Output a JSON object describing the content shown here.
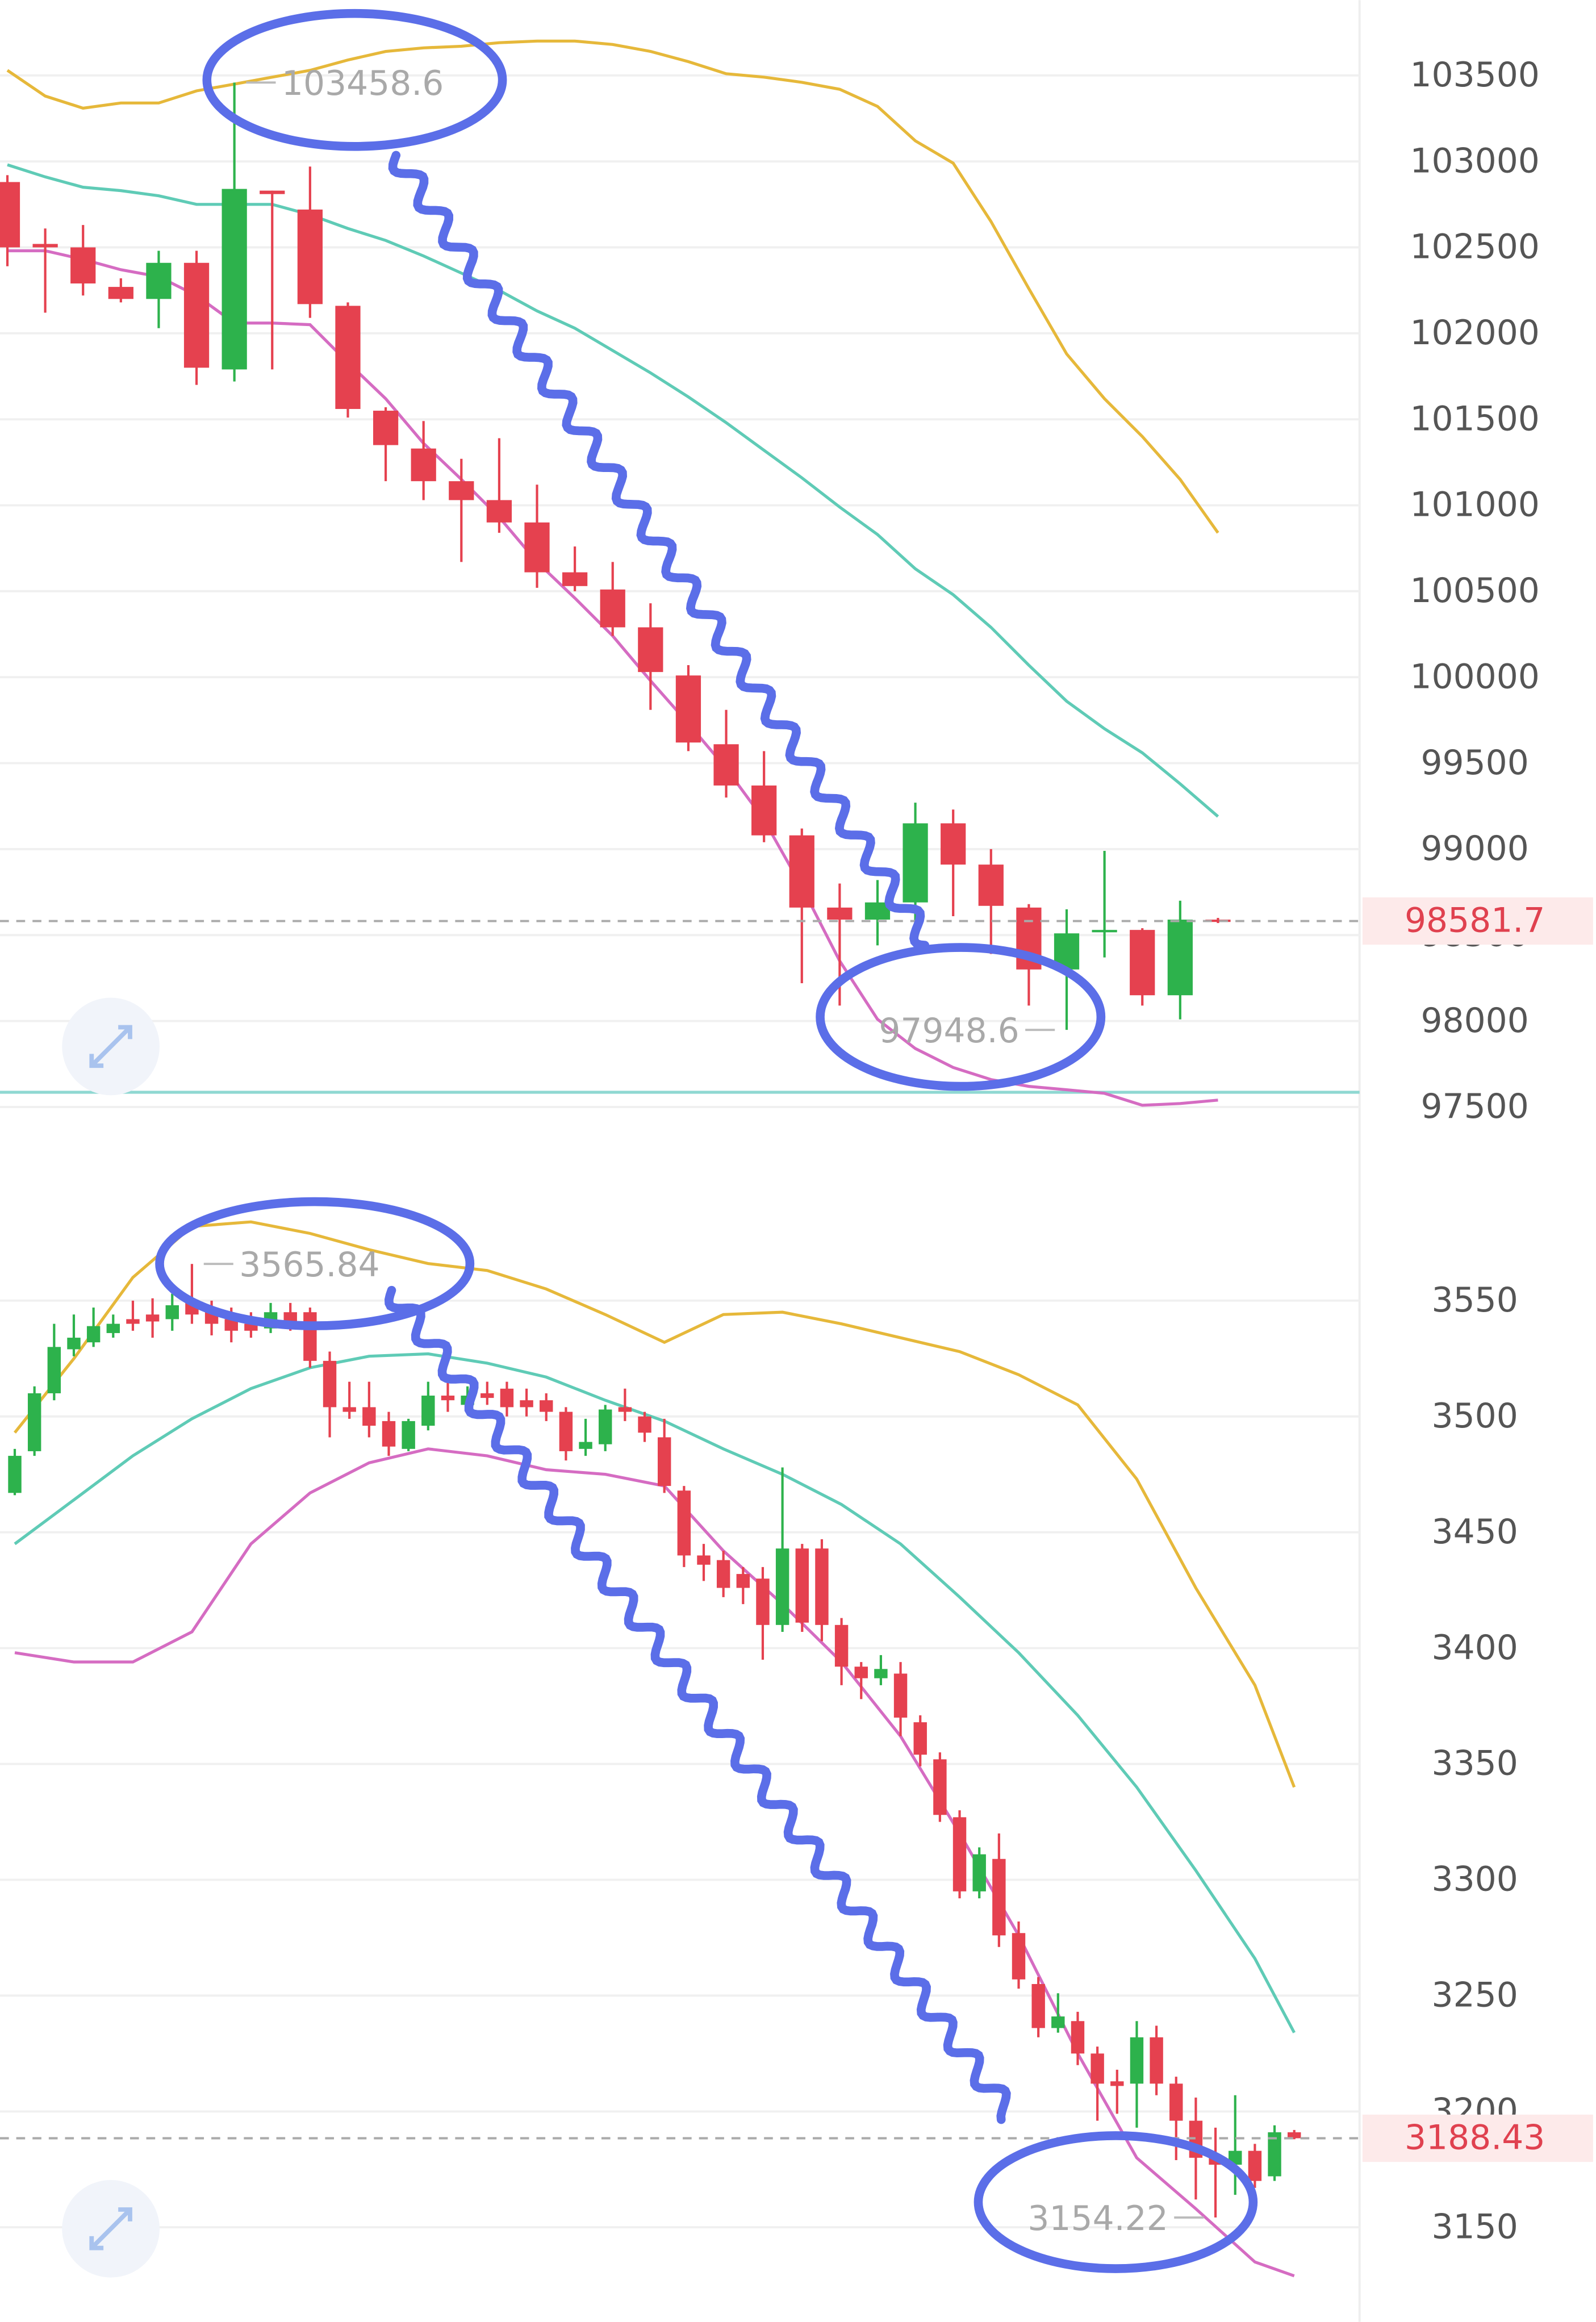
{
  "chart_data": [
    {
      "type": "candlestick",
      "up_color": "#2db24c",
      "down_color": "#e5414f",
      "open": [
        102880,
        102520,
        102500,
        102270,
        102200,
        102410,
        101790,
        102830,
        102720,
        102160,
        101550,
        101330,
        101140,
        101030,
        100900,
        100610,
        100510,
        100290,
        100010,
        99610,
        99370,
        99080,
        98660,
        98590,
        98690,
        99150,
        98910,
        98660,
        98300,
        98520,
        98530,
        98150,
        98590
      ],
      "high": [
        102920,
        102610,
        102630,
        102320,
        102480,
        102480,
        103458.6,
        102830,
        102970,
        102180,
        101570,
        101490,
        101270,
        101390,
        101120,
        100760,
        100670,
        100430,
        100070,
        99810,
        99570,
        99120,
        98800,
        98820,
        99270,
        99230,
        99000,
        98680,
        98650,
        98990,
        98540,
        98700,
        98600
      ],
      "low": [
        102390,
        102120,
        102220,
        102180,
        102030,
        101700,
        101720,
        101790,
        102090,
        101510,
        101140,
        101030,
        100670,
        100840,
        100520,
        100500,
        100240,
        99810,
        99570,
        99300,
        99040,
        98220,
        98090,
        98440,
        98450,
        98610,
        98390,
        98090,
        97948.6,
        98370,
        98090,
        98010,
        98570
      ],
      "close": [
        102500,
        102500,
        102290,
        102200,
        102410,
        101800,
        102840,
        102810,
        102170,
        101560,
        101350,
        101140,
        101030,
        100900,
        100610,
        100530,
        100290,
        100030,
        99620,
        99370,
        99080,
        98660,
        98590,
        98690,
        99150,
        98910,
        98670,
        98300,
        98510,
        98530,
        98150,
        98590,
        98581.7
      ],
      "bands": [
        {
          "color": "#e6b83a",
          "x": [
            0,
            1,
            2,
            3,
            4,
            5,
            6,
            7,
            8,
            9,
            10,
            11,
            12,
            13,
            14,
            15,
            16,
            17,
            18,
            19,
            20,
            21,
            22,
            23,
            24,
            25,
            26,
            27,
            28,
            29,
            30,
            31,
            32
          ],
          "values": [
            103530,
            103380,
            103310,
            103340,
            103340,
            103410,
            103450,
            103490,
            103530,
            103590,
            103640,
            103660,
            103670,
            103690,
            103700,
            103700,
            103680,
            103640,
            103580,
            103510,
            103490,
            103460,
            103420,
            103320,
            103120,
            102990,
            102650,
            102260,
            101880,
            101620,
            101400,
            101150,
            100840
          ]
        },
        {
          "color": "#5fcbb6",
          "x": [
            0,
            1,
            2,
            3,
            4,
            5,
            6,
            7,
            8,
            9,
            10,
            11,
            12,
            13,
            14,
            15,
            16,
            17,
            18,
            19,
            20,
            21,
            22,
            23,
            24,
            25,
            26,
            27,
            28,
            29,
            30,
            31,
            32
          ],
          "values": [
            102980,
            102910,
            102850,
            102830,
            102800,
            102750,
            102750,
            102750,
            102690,
            102610,
            102540,
            102450,
            102350,
            102250,
            102130,
            102030,
            101900,
            101770,
            101630,
            101480,
            101320,
            101160,
            100990,
            100830,
            100630,
            100480,
            100290,
            100070,
            99860,
            99700,
            99560,
            99380,
            99190
          ]
        },
        {
          "color": "#d56cc2",
          "x": [
            0,
            1,
            2,
            3,
            4,
            5,
            6,
            7,
            8,
            9,
            10,
            11,
            12,
            13,
            14,
            15,
            16,
            17,
            18,
            19,
            20,
            21,
            22,
            23,
            24,
            25,
            26,
            27,
            28,
            29,
            30,
            31,
            32
          ],
          "values": [
            102480,
            102480,
            102430,
            102370,
            102330,
            102220,
            102060,
            102060,
            102050,
            101830,
            101620,
            101360,
            101150,
            100930,
            100670,
            100460,
            100240,
            99980,
            99730,
            99470,
            99170,
            98780,
            98350,
            98010,
            97840,
            97730,
            97660,
            97620,
            97600,
            97580,
            97510,
            97520,
            97540
          ]
        }
      ],
      "ylim": [
        97400,
        103950
      ],
      "yticks": [
        97500,
        98000,
        98500,
        99000,
        99500,
        100000,
        100500,
        101000,
        101500,
        102000,
        102500,
        103000,
        103500
      ],
      "grid": true
    },
    {
      "type": "candlestick",
      "up_color": "#2db24c",
      "down_color": "#e5414f",
      "open": [
        3467,
        3485,
        3510,
        3529,
        3532,
        3536,
        3542,
        3544,
        3542,
        3549,
        3545,
        3542,
        3540,
        3538,
        3545,
        3545,
        3524,
        3504,
        3504,
        3498,
        3486,
        3496,
        3509,
        3505,
        3510,
        3512,
        3507,
        3507,
        3502,
        3486,
        3488,
        3504,
        3500,
        3491,
        3468,
        3440,
        3438,
        3432,
        3430,
        3410,
        3443,
        3443,
        3410,
        3392,
        3387,
        3389,
        3368,
        3352,
        3327,
        3295,
        3309,
        3277,
        3255,
        3236,
        3239,
        3225,
        3213,
        3212,
        3232,
        3212,
        3196,
        3180,
        3177,
        3183,
        3172,
        3191
      ],
      "high": [
        3486,
        3513,
        3540,
        3544,
        3547,
        3544,
        3550,
        3551,
        3553,
        3565.84,
        3550,
        3547,
        3545,
        3549,
        3549,
        3547,
        3528,
        3515,
        3515,
        3502,
        3499,
        3515,
        3517,
        3513,
        3515,
        3515,
        3512,
        3510,
        3504,
        3499,
        3505,
        3512,
        3502,
        3499,
        3470,
        3445,
        3442,
        3435,
        3435,
        3478,
        3445,
        3447,
        3413,
        3394,
        3397,
        3394,
        3371,
        3355,
        3330,
        3314,
        3320,
        3282,
        3258,
        3251,
        3243,
        3228,
        3218,
        3239,
        3237,
        3215,
        3206,
        3193,
        3207,
        3186,
        3194,
        3192
      ],
      "low": [
        3466,
        3483,
        3507,
        3526,
        3530,
        3534,
        3537,
        3534,
        3537,
        3540,
        3535,
        3532,
        3534,
        3536,
        3537,
        3521,
        3491,
        3499,
        3491,
        3483,
        3485,
        3494,
        3502,
        3502,
        3505,
        3500,
        3500,
        3498,
        3481,
        3483,
        3485,
        3498,
        3489,
        3467,
        3435,
        3429,
        3422,
        3419,
        3395,
        3407,
        3407,
        3403,
        3384,
        3378,
        3384,
        3362,
        3349,
        3325,
        3292,
        3292,
        3271,
        3253,
        3232,
        3234,
        3220,
        3196,
        3199,
        3193,
        3207,
        3179,
        3162,
        3154.22,
        3164,
        3167,
        3170,
        3188
      ],
      "close": [
        3483,
        3510,
        3530,
        3534,
        3539,
        3540,
        3540,
        3541,
        3548,
        3544,
        3540,
        3537,
        3537,
        3545,
        3540,
        3524,
        3504,
        3502,
        3496,
        3487,
        3498,
        3509,
        3507,
        3509,
        3508,
        3504,
        3504,
        3502,
        3485,
        3489,
        3503,
        3502,
        3493,
        3470,
        3440,
        3436,
        3426,
        3426,
        3410,
        3443,
        3411,
        3410,
        3392,
        3387,
        3391,
        3370,
        3354,
        3328,
        3295,
        3311,
        3276,
        3257,
        3236,
        3241,
        3225,
        3212,
        3211,
        3232,
        3212,
        3196,
        3180,
        3177,
        3183,
        3170,
        3191,
        3188.43
      ],
      "bands": [
        {
          "color": "#e6b83a",
          "x": [
            0,
            3,
            6,
            9,
            12,
            15,
            18,
            21,
            24,
            27,
            30,
            33,
            36,
            39,
            42,
            45,
            48,
            51,
            54,
            57,
            60,
            63,
            65
          ],
          "values": [
            3493,
            3525,
            3560,
            3582,
            3584,
            3579,
            3572,
            3566,
            3563,
            3555,
            3544,
            3532,
            3544,
            3545,
            3540,
            3534,
            3528,
            3518,
            3505,
            3473,
            3426,
            3384,
            3340
          ]
        },
        {
          "color": "#5fcbb6",
          "x": [
            0,
            3,
            6,
            9,
            12,
            15,
            18,
            21,
            24,
            27,
            30,
            33,
            36,
            39,
            42,
            45,
            48,
            51,
            54,
            57,
            60,
            63,
            65
          ],
          "values": [
            3445,
            3464,
            3483,
            3499,
            3512,
            3521,
            3526,
            3527,
            3523,
            3517,
            3507,
            3498,
            3486,
            3475,
            3462,
            3445,
            3422,
            3398,
            3371,
            3340,
            3304,
            3266,
            3234
          ]
        },
        {
          "color": "#d56cc2",
          "x": [
            0,
            3,
            6,
            9,
            12,
            15,
            18,
            21,
            24,
            27,
            30,
            33,
            36,
            39,
            42,
            45,
            48,
            51,
            54,
            57,
            60,
            63,
            65
          ],
          "values": [
            3398,
            3394,
            3394,
            3407,
            3445,
            3467,
            3480,
            3486,
            3483,
            3477,
            3475,
            3470,
            3442,
            3419,
            3394,
            3362,
            3320,
            3276,
            3225,
            3180,
            3158,
            3135,
            3129
          ]
        }
      ],
      "ylim": [
        3110,
        3600
      ],
      "yticks": [
        3150,
        3200,
        3250,
        3300,
        3350,
        3400,
        3450,
        3500,
        3550
      ],
      "grid": true
    }
  ]
}
